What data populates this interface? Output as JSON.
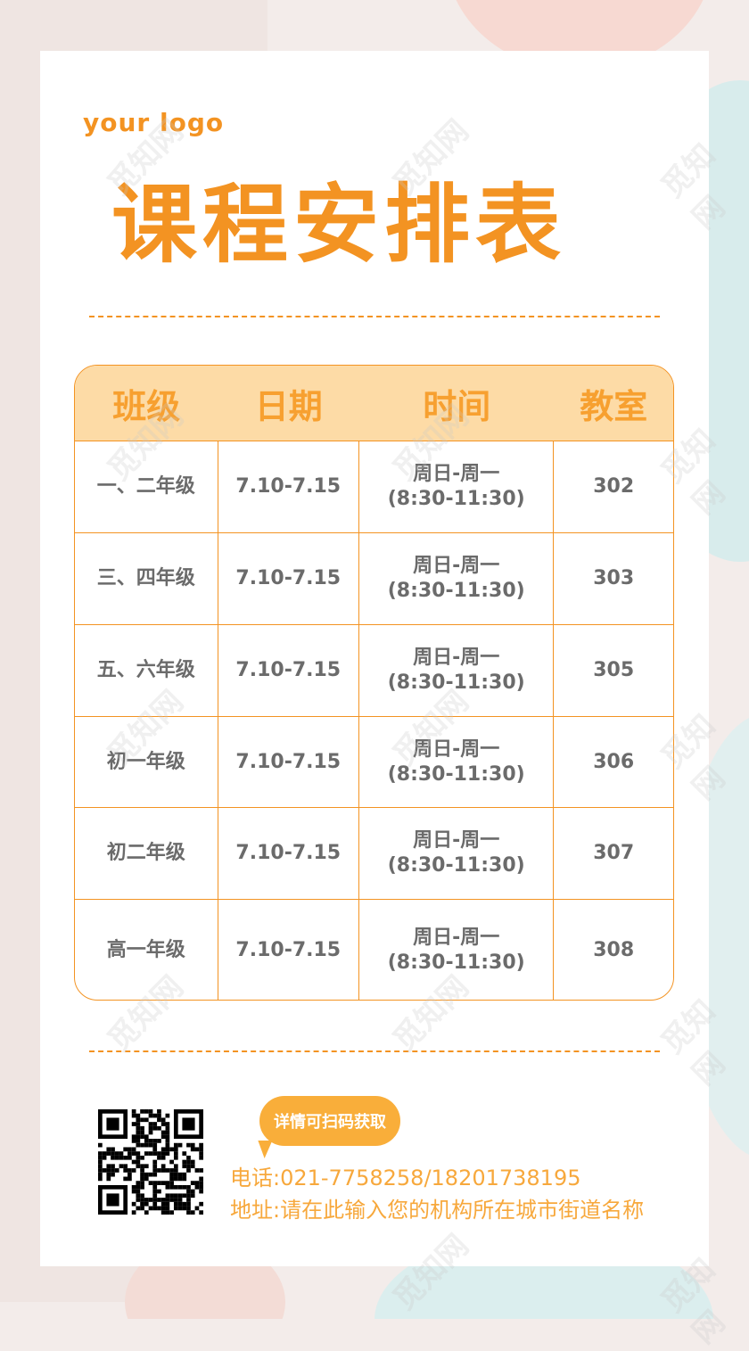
{
  "logo": "your logo",
  "title": "课程安排表",
  "table": {
    "headers": [
      "班级",
      "日期",
      "时间",
      "教室"
    ],
    "rows": [
      {
        "grade": "一、二年级",
        "date": "7.10-7.15",
        "time_days": "周日-周一",
        "time_hours": "(8:30-11:30)",
        "room": "302"
      },
      {
        "grade": "三、四年级",
        "date": "7.10-7.15",
        "time_days": "周日-周一",
        "time_hours": "(8:30-11:30)",
        "room": "303"
      },
      {
        "grade": "五、六年级",
        "date": "7.10-7.15",
        "time_days": "周日-周一",
        "time_hours": "(8:30-11:30)",
        "room": "305"
      },
      {
        "grade": "初一年级",
        "date": "7.10-7.15",
        "time_days": "周日-周一",
        "time_hours": "(8:30-11:30)",
        "room": "306"
      },
      {
        "grade": "初二年级",
        "date": "7.10-7.15",
        "time_days": "周日-周一",
        "time_hours": "(8:30-11:30)",
        "room": "307"
      },
      {
        "grade": "高一年级",
        "date": "7.10-7.15",
        "time_days": "周日-周一",
        "time_hours": "(8:30-11:30)",
        "room": "308"
      }
    ]
  },
  "footer": {
    "bubble": "详情可扫码获取",
    "phone": "电话:021-7758258/18201738195",
    "address": "地址:请在此输入您的机构所在城市街道名称",
    "qr_icon": "qr-code"
  },
  "watermark": "觅知网",
  "colors": {
    "accent": "#f39322",
    "header_bg": "#fddba6",
    "bubble": "#f9ae3a",
    "text": "#6b6b6b"
  }
}
